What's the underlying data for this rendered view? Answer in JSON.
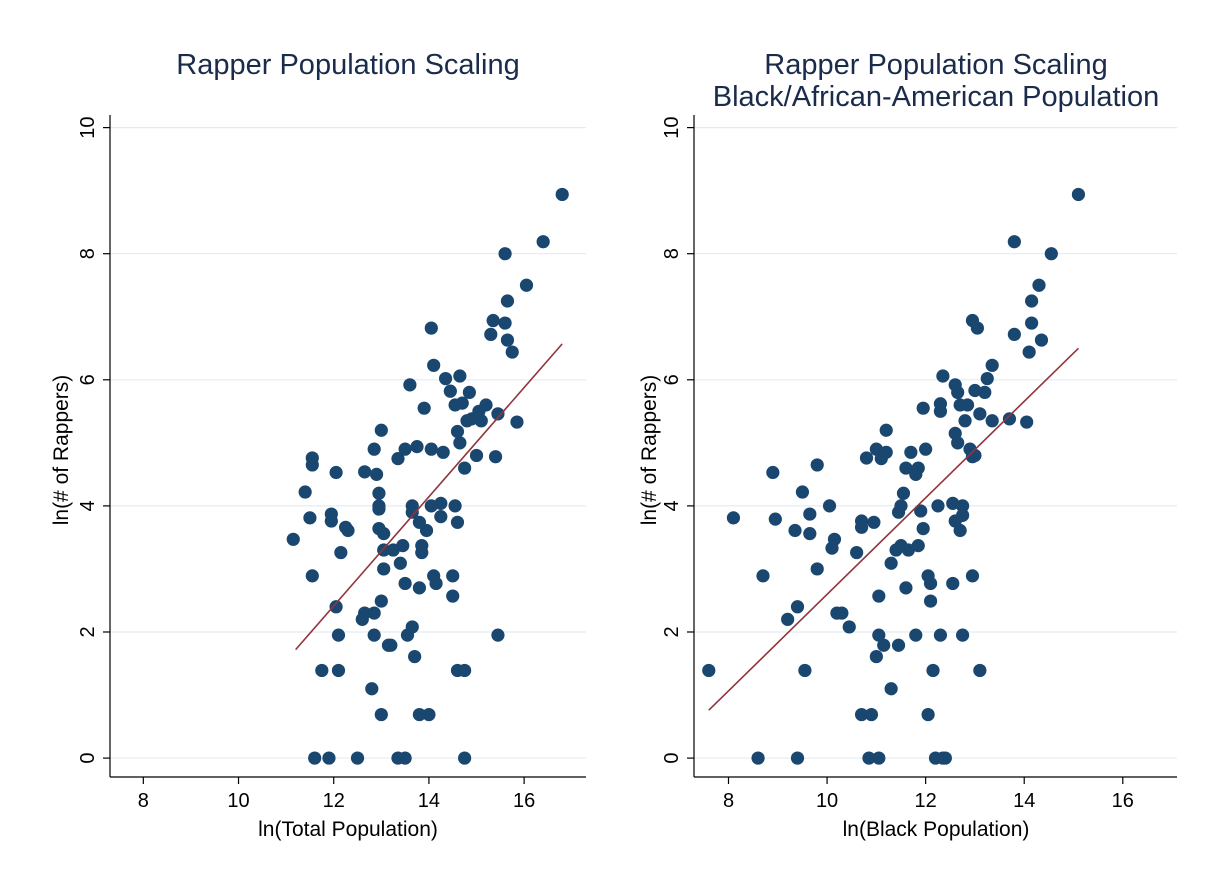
{
  "chart_data": [
    {
      "type": "scatter",
      "title": [
        "Rapper Population Scaling"
      ],
      "xlabel": "ln(Total Population)",
      "ylabel": "ln(# of Rappers)",
      "xlim": [
        7.3,
        17.3
      ],
      "ylim": [
        -0.3,
        10.2
      ],
      "xticks": [
        "8",
        "10",
        "12",
        "14",
        "16"
      ],
      "yticks": [
        "0",
        "2",
        "4",
        "6",
        "8",
        "10"
      ],
      "grid": true,
      "points": [
        [
          11.15,
          3.47
        ],
        [
          11.4,
          4.22
        ],
        [
          11.5,
          3.81
        ],
        [
          11.55,
          4.65
        ],
        [
          11.55,
          4.76
        ],
        [
          11.55,
          2.89
        ],
        [
          11.6,
          0
        ],
        [
          11.75,
          1.39
        ],
        [
          11.9,
          0
        ],
        [
          11.95,
          3.76
        ],
        [
          11.95,
          3.87
        ],
        [
          12.05,
          4.53
        ],
        [
          12.05,
          2.4
        ],
        [
          12.1,
          1.95
        ],
        [
          12.1,
          1.39
        ],
        [
          12.15,
          3.26
        ],
        [
          12.25,
          3.66
        ],
        [
          12.3,
          3.61
        ],
        [
          12.5,
          0
        ],
        [
          12.6,
          2.2
        ],
        [
          12.65,
          4.54
        ],
        [
          12.65,
          2.3
        ],
        [
          12.8,
          1.1
        ],
        [
          12.85,
          2.3
        ],
        [
          12.85,
          4.9
        ],
        [
          12.85,
          1.95
        ],
        [
          12.9,
          4.5
        ],
        [
          12.95,
          4.2
        ],
        [
          12.95,
          3.95
        ],
        [
          12.95,
          4.0
        ],
        [
          12.95,
          3.64
        ],
        [
          13.0,
          5.2
        ],
        [
          13.0,
          2.49
        ],
        [
          13.0,
          0.69
        ],
        [
          13.05,
          3.56
        ],
        [
          13.05,
          3.3
        ],
        [
          13.05,
          3.0
        ],
        [
          13.15,
          1.79
        ],
        [
          13.2,
          1.79
        ],
        [
          13.25,
          3.3
        ],
        [
          13.35,
          0
        ],
        [
          13.35,
          4.75
        ],
        [
          13.4,
          3.09
        ],
        [
          13.45,
          3.37
        ],
        [
          13.5,
          0
        ],
        [
          13.5,
          4.9
        ],
        [
          13.5,
          2.77
        ],
        [
          13.55,
          1.95
        ],
        [
          13.6,
          5.92
        ],
        [
          13.65,
          4.0
        ],
        [
          13.65,
          3.9
        ],
        [
          13.65,
          2.08
        ],
        [
          13.7,
          1.61
        ],
        [
          13.75,
          4.94
        ],
        [
          13.8,
          3.74
        ],
        [
          13.8,
          2.7
        ],
        [
          13.8,
          0.69
        ],
        [
          13.85,
          3.37
        ],
        [
          13.85,
          3.26
        ],
        [
          13.9,
          5.55
        ],
        [
          13.95,
          3.61
        ],
        [
          14.0,
          0.69
        ],
        [
          14.05,
          6.82
        ],
        [
          14.05,
          4.9
        ],
        [
          14.05,
          4.0
        ],
        [
          14.1,
          6.23
        ],
        [
          14.1,
          2.89
        ],
        [
          14.15,
          2.77
        ],
        [
          14.25,
          3.83
        ],
        [
          14.25,
          4.04
        ],
        [
          14.3,
          4.85
        ],
        [
          14.35,
          6.02
        ],
        [
          14.45,
          5.82
        ],
        [
          14.5,
          2.57
        ],
        [
          14.5,
          2.89
        ],
        [
          14.55,
          4.0
        ],
        [
          14.55,
          5.6
        ],
        [
          14.6,
          5.18
        ],
        [
          14.6,
          3.74
        ],
        [
          14.6,
          1.39
        ],
        [
          14.65,
          6.06
        ],
        [
          14.65,
          5.0
        ],
        [
          14.7,
          5.63
        ],
        [
          14.75,
          4.6
        ],
        [
          14.75,
          1.39
        ],
        [
          14.75,
          0
        ],
        [
          14.8,
          5.35
        ],
        [
          14.85,
          5.8
        ],
        [
          14.9,
          5.38
        ],
        [
          15.0,
          4.8
        ],
        [
          15.05,
          5.5
        ],
        [
          15.1,
          5.35
        ],
        [
          15.2,
          5.6
        ],
        [
          15.3,
          6.72
        ],
        [
          15.35,
          6.94
        ],
        [
          15.4,
          4.78
        ],
        [
          15.45,
          5.46
        ],
        [
          15.45,
          1.95
        ],
        [
          15.6,
          8.0
        ],
        [
          15.6,
          6.9
        ],
        [
          15.65,
          7.25
        ],
        [
          15.65,
          6.63
        ],
        [
          15.75,
          6.44
        ],
        [
          15.85,
          5.33
        ],
        [
          16.05,
          7.5
        ],
        [
          16.4,
          8.19
        ],
        [
          16.8,
          8.94
        ]
      ],
      "fit_line": [
        [
          11.2,
          1.72
        ],
        [
          16.8,
          6.57
        ]
      ]
    },
    {
      "type": "scatter",
      "title": [
        "Rapper Population Scaling",
        "Black/African-American Population"
      ],
      "xlabel": "ln(Black Population)",
      "ylabel": "ln(# of Rappers)",
      "xlim": [
        7.3,
        17.1
      ],
      "ylim": [
        -0.3,
        10.2
      ],
      "xticks": [
        "8",
        "10",
        "12",
        "14",
        "16"
      ],
      "yticks": [
        "0",
        "2",
        "4",
        "6",
        "8",
        "10"
      ],
      "grid": true,
      "points": [
        [
          7.6,
          1.39
        ],
        [
          8.1,
          3.81
        ],
        [
          8.6,
          0
        ],
        [
          8.7,
          2.89
        ],
        [
          8.9,
          4.53
        ],
        [
          8.95,
          3.79
        ],
        [
          9.2,
          2.2
        ],
        [
          9.35,
          3.61
        ],
        [
          9.4,
          0
        ],
        [
          9.4,
          2.4
        ],
        [
          9.5,
          4.22
        ],
        [
          9.55,
          1.39
        ],
        [
          9.65,
          3.87
        ],
        [
          9.65,
          3.56
        ],
        [
          9.8,
          4.65
        ],
        [
          9.8,
          3.0
        ],
        [
          10.05,
          4.0
        ],
        [
          10.1,
          3.33
        ],
        [
          10.15,
          3.47
        ],
        [
          10.2,
          2.3
        ],
        [
          10.3,
          2.3
        ],
        [
          10.45,
          2.08
        ],
        [
          10.6,
          3.26
        ],
        [
          10.7,
          3.76
        ],
        [
          10.7,
          3.66
        ],
        [
          10.7,
          0.69
        ],
        [
          10.8,
          4.76
        ],
        [
          10.85,
          0
        ],
        [
          10.9,
          0.69
        ],
        [
          10.95,
          3.74
        ],
        [
          11.0,
          4.9
        ],
        [
          11.0,
          1.61
        ],
        [
          11.05,
          2.57
        ],
        [
          11.05,
          0
        ],
        [
          11.05,
          1.95
        ],
        [
          11.1,
          4.75
        ],
        [
          11.15,
          1.79
        ],
        [
          11.2,
          5.2
        ],
        [
          11.2,
          4.85
        ],
        [
          11.3,
          1.1
        ],
        [
          11.3,
          3.09
        ],
        [
          11.4,
          3.3
        ],
        [
          11.45,
          1.79
        ],
        [
          11.45,
          3.9
        ],
        [
          11.5,
          4.0
        ],
        [
          11.5,
          3.37
        ],
        [
          11.55,
          4.2
        ],
        [
          11.6,
          4.6
        ],
        [
          11.6,
          2.7
        ],
        [
          11.65,
          3.3
        ],
        [
          11.7,
          4.85
        ],
        [
          11.8,
          4.5
        ],
        [
          11.8,
          1.95
        ],
        [
          11.85,
          4.6
        ],
        [
          11.85,
          3.37
        ],
        [
          11.9,
          3.92
        ],
        [
          11.95,
          3.64
        ],
        [
          11.95,
          5.55
        ],
        [
          12.0,
          4.9
        ],
        [
          12.05,
          0.69
        ],
        [
          12.05,
          2.89
        ],
        [
          12.1,
          2.77
        ],
        [
          12.1,
          2.49
        ],
        [
          12.15,
          1.39
        ],
        [
          12.2,
          0
        ],
        [
          12.25,
          4.0
        ],
        [
          12.3,
          5.62
        ],
        [
          12.3,
          5.5
        ],
        [
          12.3,
          1.95
        ],
        [
          12.35,
          6.06
        ],
        [
          12.35,
          0
        ],
        [
          12.4,
          0
        ],
        [
          12.55,
          4.04
        ],
        [
          12.55,
          2.77
        ],
        [
          12.6,
          5.15
        ],
        [
          12.6,
          5.92
        ],
        [
          12.6,
          3.76
        ],
        [
          12.65,
          5.0
        ],
        [
          12.65,
          5.8
        ],
        [
          12.7,
          5.6
        ],
        [
          12.7,
          3.61
        ],
        [
          12.75,
          1.95
        ],
        [
          12.75,
          3.85
        ],
        [
          12.75,
          4.0
        ],
        [
          12.8,
          5.35
        ],
        [
          12.85,
          5.6
        ],
        [
          12.9,
          4.9
        ],
        [
          12.95,
          4.78
        ],
        [
          12.95,
          2.89
        ],
        [
          12.95,
          6.94
        ],
        [
          13.0,
          5.83
        ],
        [
          13.0,
          4.8
        ],
        [
          13.05,
          6.82
        ],
        [
          13.1,
          1.39
        ],
        [
          13.1,
          5.46
        ],
        [
          13.2,
          5.8
        ],
        [
          13.25,
          6.02
        ],
        [
          13.35,
          5.35
        ],
        [
          13.35,
          6.23
        ],
        [
          13.7,
          5.38
        ],
        [
          13.8,
          8.19
        ],
        [
          13.8,
          6.72
        ],
        [
          14.05,
          5.33
        ],
        [
          14.1,
          6.44
        ],
        [
          14.15,
          6.9
        ],
        [
          14.15,
          7.25
        ],
        [
          14.3,
          7.5
        ],
        [
          14.35,
          6.63
        ],
        [
          14.55,
          8.0
        ],
        [
          15.1,
          8.94
        ]
      ],
      "fit_line": [
        [
          7.6,
          0.76
        ],
        [
          15.1,
          6.5
        ]
      ]
    }
  ]
}
